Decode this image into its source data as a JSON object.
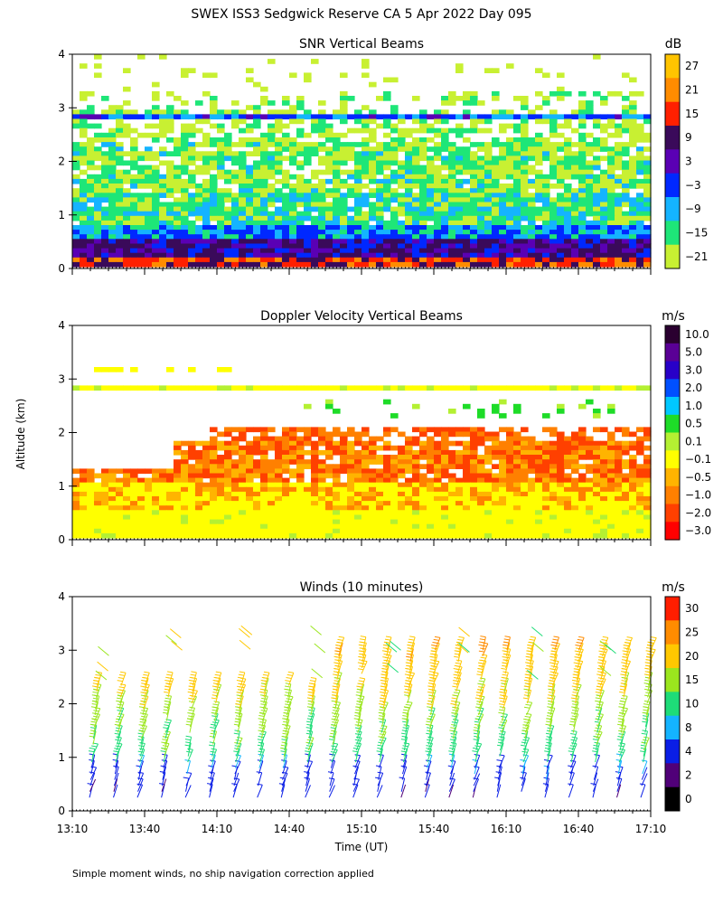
{
  "title": "SWEX ISS3 Sedgwick Reserve CA    5 Apr 2022 Day 095",
  "footnote": "Simple moment winds, no ship navigation correction applied",
  "chart_data": [
    {
      "type": "heatmap",
      "title": "SNR Vertical Beams",
      "unit": "dB",
      "ylabel": "",
      "ylim": [
        0,
        4
      ],
      "yticks": [
        "0",
        "1",
        "2",
        "3",
        "4"
      ],
      "colorbar": {
        "labels": [
          "27",
          "21",
          "15",
          "9",
          "3",
          "−3",
          "−9",
          "−15",
          "−21"
        ],
        "colors": [
          "#ffc400",
          "#ff8c00",
          "#ff2000",
          "#3a0a5a",
          "#5a00b4",
          "#0028ff",
          "#14b4ff",
          "#1ee678",
          "#c8f032"
        ]
      }
    },
    {
      "type": "heatmap",
      "title": "Doppler Velocity Vertical Beams",
      "unit": "m/s",
      "ylabel": "Altitude (km)",
      "ylim": [
        0,
        4
      ],
      "yticks": [
        "0",
        "1",
        "2",
        "3",
        "4"
      ],
      "colorbar": {
        "labels": [
          "10.0",
          "5.0",
          "3.0",
          "2.0",
          "1.0",
          "0.5",
          "0.1",
          "−0.1",
          "−0.5",
          "−1.0",
          "−2.0",
          "−3.0"
        ],
        "colors": [
          "#2a0030",
          "#5a0096",
          "#2800c8",
          "#0050ff",
          "#00c8ff",
          "#1edc28",
          "#b4f032",
          "#ffff00",
          "#ffb400",
          "#ff8000",
          "#ff4000",
          "#ff0000"
        ]
      }
    },
    {
      "type": "barbs",
      "title": "Winds (10 minutes)",
      "unit": "m/s",
      "ylabel": "",
      "ylim": [
        0,
        4
      ],
      "yticks": [
        "0",
        "1",
        "2",
        "3",
        "4"
      ],
      "colorbar": {
        "labels": [
          "30",
          "25",
          "20",
          "15",
          "10",
          "8",
          "4",
          "2",
          "0"
        ],
        "colors": [
          "#ff1e00",
          "#ff8c00",
          "#ffc800",
          "#9be61e",
          "#1edc78",
          "#14b4ff",
          "#0a1ee6",
          "#500078",
          "#000000"
        ]
      }
    }
  ],
  "x_axis": {
    "label": "Time (UT)",
    "ticks": [
      "13:10",
      "13:40",
      "14:10",
      "14:40",
      "15:10",
      "15:40",
      "16:10",
      "16:40",
      "17:10"
    ]
  }
}
